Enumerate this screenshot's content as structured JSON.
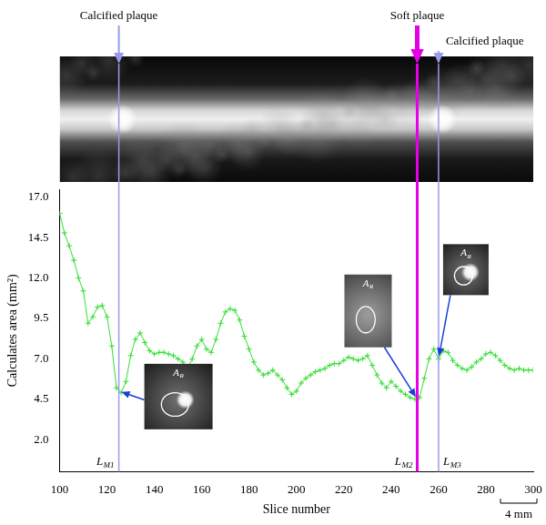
{
  "chart_data": {
    "type": "line",
    "x_label": "Slice number",
    "y_label": "Calculates area (mm²)",
    "x": [
      100,
      102,
      104,
      106,
      108,
      110,
      112,
      114,
      116,
      118,
      120,
      122,
      124,
      126,
      128,
      130,
      132,
      134,
      136,
      138,
      140,
      142,
      144,
      146,
      148,
      150,
      152,
      154,
      156,
      158,
      160,
      162,
      164,
      166,
      168,
      170,
      172,
      174,
      176,
      178,
      180,
      182,
      184,
      186,
      188,
      190,
      192,
      194,
      196,
      198,
      200,
      202,
      204,
      206,
      208,
      210,
      212,
      214,
      216,
      218,
      220,
      222,
      224,
      226,
      228,
      230,
      232,
      234,
      236,
      238,
      240,
      242,
      244,
      246,
      248,
      250,
      252,
      254,
      256,
      258,
      260,
      262,
      264,
      266,
      268,
      270,
      272,
      274,
      276,
      278,
      280,
      282,
      284,
      286,
      288,
      290,
      292,
      294,
      296,
      298,
      300
    ],
    "series": [
      {
        "color": "#33dd33",
        "marker": "plus",
        "line_style": "solid",
        "values": [
          16.0,
          14.8,
          14.0,
          13.1,
          12.0,
          11.2,
          9.2,
          9.6,
          10.2,
          10.3,
          9.6,
          7.8,
          5.2,
          4.9,
          5.6,
          7.2,
          8.2,
          8.6,
          8.0,
          7.5,
          7.3,
          7.4,
          7.4,
          7.3,
          7.2,
          7.0,
          6.8,
          6.4,
          7.0,
          7.8,
          8.2,
          7.6,
          7.4,
          8.2,
          9.2,
          9.9,
          10.1,
          10.0,
          9.4,
          8.4,
          7.6,
          6.8,
          6.3,
          6.0,
          6.1,
          6.3,
          6.0,
          5.7,
          5.2,
          4.8,
          5.0,
          5.5,
          5.8,
          6.0,
          6.2,
          6.3,
          6.4,
          6.6,
          6.7,
          6.7,
          6.9,
          7.1,
          7.0,
          6.9,
          7.0,
          7.2,
          6.6,
          6.0,
          5.5,
          5.2,
          5.6,
          5.3,
          5.0,
          4.8,
          4.6,
          4.5,
          4.6,
          5.8,
          7.0,
          7.6,
          7.0,
          7.5,
          7.4,
          6.9,
          6.6,
          6.4,
          6.3,
          6.5,
          6.8,
          7.0,
          7.3,
          7.4,
          7.2,
          6.9,
          6.6,
          6.4,
          6.3,
          6.4,
          6.3,
          6.3,
          6.3
        ]
      }
    ],
    "xlim": [
      100,
      300
    ],
    "xticks": [
      100,
      120,
      140,
      160,
      180,
      200,
      220,
      240,
      260,
      280,
      300
    ],
    "ylim": [
      0,
      17.5
    ],
    "yticks": [
      {
        "value": 2,
        "label": "2.0"
      },
      4.5,
      {
        "value": 7,
        "label": "7.0"
      },
      9.5,
      {
        "value": 12,
        "label": "12.0"
      },
      14.5,
      {
        "value": 17,
        "label": "17.0"
      }
    ],
    "grid": false,
    "vertical_lines": [
      {
        "x": 125,
        "color": "#9999ee",
        "annotation": "Calcified plaque",
        "label": "L",
        "subscript": "M1"
      },
      {
        "x": 251,
        "color": "#e600e6",
        "annotation": "Soft plaque",
        "label": "L",
        "subscript": "M2"
      },
      {
        "x": 260,
        "color": "#9999ee",
        "annotation": "Calcified plaque",
        "label": "L",
        "subscript": "M3"
      }
    ],
    "insets": [
      {
        "x": 125,
        "y": 5.0,
        "label": "A",
        "subscript": "R"
      },
      {
        "x": 251,
        "y": 4.5,
        "label": "A",
        "subscript": "R"
      },
      {
        "x": 260,
        "y": 7.0,
        "label": "A",
        "subscript": "R"
      }
    ],
    "scale_bar": "4 mm"
  }
}
